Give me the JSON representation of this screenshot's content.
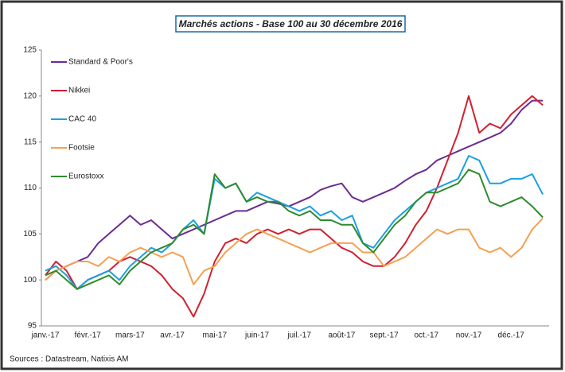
{
  "chart_data": {
    "type": "line",
    "title": "Marchés actions - Base 100 au 30 décembre 2016",
    "source": "Sources : Datastream, Natixis AM",
    "categories": [
      "janv.-17",
      null,
      null,
      null,
      "févr.-17",
      null,
      null,
      null,
      "mars-17",
      null,
      null,
      null,
      "avr.-17",
      null,
      null,
      null,
      "mai-17",
      null,
      null,
      null,
      "juin-17",
      null,
      null,
      null,
      "juil.-17",
      null,
      null,
      null,
      "août-17",
      null,
      null,
      null,
      "sept.-17",
      null,
      null,
      null,
      "oct.-17",
      null,
      null,
      null,
      "nov.-17",
      null,
      null,
      null,
      "déc.-17",
      null,
      null,
      null
    ],
    "ylim": [
      95,
      125
    ],
    "yticks": [
      95,
      100,
      105,
      110,
      115,
      120,
      125
    ],
    "grid": false,
    "legend": "upper left",
    "series": [
      {
        "name": "Standard & Poor's",
        "color": "#6a2c91",
        "values": [
          100,
          101,
          101.5,
          102,
          102.5,
          104,
          105,
          106,
          107,
          106,
          106.5,
          105.5,
          104.5,
          105,
          105.5,
          106,
          106.5,
          107,
          107.5,
          107.5,
          108,
          108.5,
          108.3,
          108,
          108.5,
          109,
          109.8,
          110.2,
          110.5,
          109,
          108.5,
          109,
          109.5,
          110,
          110.8,
          111.5,
          112,
          113,
          113.5,
          114,
          114.5,
          115,
          115.5,
          116,
          117,
          118.5,
          119.5,
          119.5
        ]
      },
      {
        "name": "Nikkei",
        "color": "#d0202e",
        "values": [
          100.5,
          102,
          101,
          99,
          100,
          100.5,
          101,
          102,
          102.5,
          102,
          101.5,
          100.5,
          99,
          98,
          96,
          98.5,
          102,
          104,
          104.5,
          104,
          105,
          105.5,
          105,
          105.5,
          105,
          105.5,
          105.5,
          104.5,
          103.5,
          103,
          102,
          101.5,
          101.5,
          102.5,
          104,
          106,
          107.5,
          110,
          113,
          116,
          120,
          116,
          117,
          116.5,
          118,
          119,
          120,
          119
        ]
      },
      {
        "name": "CAC 40",
        "color": "#1aa0e0",
        "values": [
          101,
          101.5,
          100.5,
          99,
          100,
          100.5,
          101,
          100,
          101.5,
          102.5,
          103.5,
          103,
          104,
          105.5,
          106.5,
          105,
          111,
          110,
          110.5,
          108.5,
          109.5,
          109,
          108.5,
          108,
          107.5,
          108,
          107,
          107.5,
          106.5,
          107,
          104,
          103.5,
          105,
          106.5,
          107.5,
          108.5,
          109.5,
          110,
          110.5,
          111,
          113.5,
          113,
          110.5,
          110.5,
          111,
          111,
          111.5,
          109.3
        ]
      },
      {
        "name": "Footsie",
        "color": "#f5a050",
        "values": [
          100,
          101,
          101.5,
          102,
          102,
          101.5,
          102.5,
          102,
          103,
          103.5,
          103,
          102.5,
          103,
          102.5,
          99.5,
          101,
          101.5,
          103,
          104,
          105,
          105.5,
          105,
          104.5,
          104,
          103.5,
          103,
          103.5,
          104,
          104,
          104,
          103,
          103,
          101.5,
          102,
          102.5,
          103.5,
          104.5,
          105.5,
          105,
          105.5,
          105.5,
          103.5,
          103,
          103.5,
          102.5,
          103.5,
          105.5,
          106.7
        ]
      },
      {
        "name": "Eurostoxx",
        "color": "#2e8b2e",
        "values": [
          100.5,
          101,
          100,
          99,
          99.5,
          100,
          100.5,
          99.5,
          101,
          102,
          103,
          103.5,
          104,
          105.5,
          106,
          105,
          111.5,
          110,
          110.5,
          108.5,
          109,
          108.5,
          108.5,
          107.5,
          107,
          107.5,
          106.5,
          106.5,
          106,
          106,
          104,
          103,
          104.5,
          106,
          107,
          108.5,
          109.5,
          109.5,
          110,
          110.5,
          112,
          111.5,
          108.5,
          108,
          108.5,
          109,
          108,
          106.8
        ]
      }
    ]
  }
}
